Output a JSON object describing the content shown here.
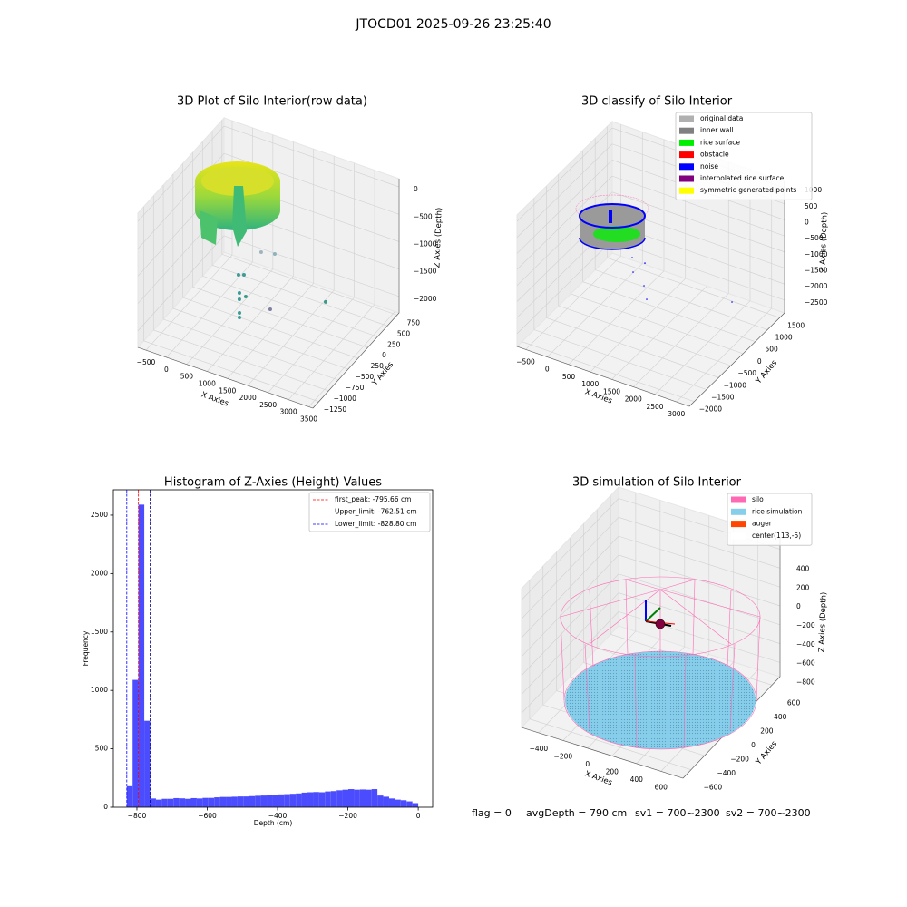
{
  "title": "JTOCD01 2025-09-26 23:25:40",
  "status": [
    "flag = 0",
    "avgDepth = 790 cm",
    "sv1 = 700~2300",
    "sv2 = 700~2300"
  ],
  "chart_data": [
    {
      "type": "scatter3d",
      "title": "3D Plot of Silo Interior(row data)",
      "xlabel": "X Axies",
      "ylabel": "Y Axies",
      "zlabel": "Z Axies (Depth)",
      "xlim": [
        -700,
        3600
      ],
      "ylim": [
        -1400,
        800
      ],
      "zlim": [
        -2300,
        150
      ],
      "xticks": [
        {
          "value": -500,
          "label": "−500"
        },
        0,
        500,
        1000,
        1500,
        2000,
        2500,
        3000,
        3500
      ],
      "yticks": [
        750,
        500,
        250,
        0,
        {
          "value": -250,
          "label": "−250"
        },
        {
          "value": -500,
          "label": "−500"
        },
        {
          "value": -750,
          "label": "−750"
        },
        {
          "value": -1000,
          "label": "−1000"
        },
        {
          "value": -1250,
          "label": "−1250"
        }
      ],
      "zticks": [
        0,
        {
          "value": -500,
          "label": "−500"
        },
        {
          "value": -1000,
          "label": "−1000"
        },
        {
          "value": -1500,
          "label": "−1500"
        },
        {
          "value": -2000,
          "label": "−2000"
        }
      ],
      "x": [
        982,
        1316,
        559,
        425,
        447,
        603,
        447,
        2565,
        1205,
        833,
        833
      ],
      "y": [
        0,
        0,
        0,
        0,
        0,
        0,
        0,
        0,
        0,
        -400,
        -400
      ],
      "z": [
        -1234,
        -1181,
        -1757,
        -1792,
        -2116,
        -2143,
        -2232,
        -1735,
        -2219,
        -2065,
        -2148
      ],
      "colors": [
        "#9fb4c0",
        "#8fb2bc",
        "#3b9c98",
        "#3b9c98",
        "#3b9c98",
        "#3a9a8a",
        "#3b9c98",
        "#3a9a8a",
        "#7f7f9f",
        "#3b9c98",
        "#3b9c98"
      ]
    },
    {
      "type": "scatter3d",
      "title": "3D classify of Silo Interior",
      "xlabel": "X Axies",
      "ylabel": "Y Axies",
      "zlabel": "Z Axies (Depth)",
      "xlim": [
        -700,
        3300
      ],
      "ylim": [
        -2200,
        1700
      ],
      "zlim": [
        -2900,
        1200
      ],
      "xticks": [
        {
          "value": -500,
          "label": "−500"
        },
        0,
        500,
        1000,
        1500,
        2000,
        2500,
        3000
      ],
      "yticks": [
        1500,
        1000,
        500,
        0,
        {
          "value": -500,
          "label": "−500"
        },
        {
          "value": -1000,
          "label": "−1000"
        },
        {
          "value": -1500,
          "label": "−1500"
        },
        {
          "value": -2000,
          "label": "−2000"
        }
      ],
      "zticks": [
        1000,
        500,
        0,
        {
          "value": -500,
          "label": "−500"
        },
        {
          "value": -1000,
          "label": "−1000"
        },
        {
          "value": -1500,
          "label": "−1500"
        },
        {
          "value": -2000,
          "label": "−2000"
        },
        {
          "value": -2500,
          "label": "−2500"
        }
      ],
      "series": [
        {
          "name": "original data",
          "color": "#b0b0b0"
        },
        {
          "name": "inner wall",
          "color": "#808080"
        },
        {
          "name": "rice surface",
          "color": "#00ee00"
        },
        {
          "name": "obstacle",
          "color": "#ff0000"
        },
        {
          "name": "noise",
          "color": "#0000ff",
          "x": [
            727,
            1022,
            748,
            1001,
            1064,
            3043
          ],
          "y": [
            0,
            0,
            0,
            0,
            0,
            0
          ],
          "z": [
            -1109,
            -1140,
            -1550,
            -1855,
            -2250,
            -1411
          ]
        },
        {
          "name": "interpolated rice surface",
          "color": "#800080"
        },
        {
          "name": "symmetric generated points",
          "color": "#ffff00"
        }
      ]
    },
    {
      "type": "histogram",
      "title": "Histogram of Z-Axies (Height) Values",
      "xlabel": "Depth (cm)",
      "ylabel": "Frequency",
      "color": "#4c4cff",
      "xlim": [
        -867,
        41
      ],
      "ylim": [
        0,
        2717
      ],
      "xticks": [
        {
          "value": -800,
          "label": "−800"
        },
        {
          "value": -600,
          "label": "−600"
        },
        {
          "value": -400,
          "label": "−400"
        },
        {
          "value": -200,
          "label": "−200"
        },
        0
      ],
      "yticks": [
        0,
        500,
        1000,
        1500,
        2000,
        2500
      ],
      "bins": [
        -828.8,
        -812.22,
        -795.65,
        -779.07,
        -762.5,
        -745.92,
        -729.34,
        -712.77,
        -696.19,
        -679.62,
        -663.04,
        -646.46,
        -629.89,
        -613.31,
        -596.74,
        -580.16,
        -563.58,
        -547.01,
        -530.43,
        -513.86,
        -497.28,
        -480.7,
        -464.13,
        -447.55,
        -430.98,
        -414.4,
        -397.82,
        -381.25,
        -364.67,
        -348.1,
        -331.52,
        -314.94,
        -298.37,
        -281.79,
        -265.22,
        -248.64,
        -232.06,
        -215.49,
        -198.91,
        -182.34,
        -165.76,
        -149.18,
        -132.61,
        -116.03,
        -99.46,
        -82.88,
        -66.3,
        -49.73,
        -33.15,
        -16.58,
        0
      ],
      "values": [
        180,
        1090,
        2590,
        740,
        75,
        65,
        72,
        72,
        78,
        76,
        72,
        78,
        75,
        80,
        80,
        85,
        88,
        88,
        90,
        92,
        92,
        95,
        98,
        100,
        102,
        105,
        110,
        112,
        115,
        118,
        125,
        128,
        130,
        128,
        135,
        138,
        145,
        150,
        155,
        150,
        152,
        150,
        155,
        100,
        90,
        75,
        65,
        60,
        50,
        35
      ],
      "vlines": [
        {
          "name": "first_peak: -795.66 cm",
          "value": -795.66,
          "color": "#ff0000"
        },
        {
          "name": "Upper_limit: -762.51 cm",
          "value": -762.51,
          "color": "#00008b"
        },
        {
          "name": "Lower_limit: -828.80 cm",
          "value": -828.8,
          "color": "#0000ff"
        }
      ]
    },
    {
      "type": "scatter3d",
      "title": "3D simulation of Silo Interior",
      "xlabel": "X Axies",
      "ylabel": "Y Axies",
      "zlabel": "Z Axies (Depth)",
      "xlim": [
        -540,
        780
      ],
      "ylim": [
        -720,
        720
      ],
      "zlim": [
        -950,
        520
      ],
      "xticks": [
        {
          "value": -400,
          "label": "−400"
        },
        {
          "value": -200,
          "label": "−200"
        },
        0,
        200,
        400,
        600
      ],
      "yticks": [
        600,
        400,
        200,
        0,
        {
          "value": -200,
          "label": "−200"
        },
        {
          "value": -400,
          "label": "−400"
        },
        {
          "value": -600,
          "label": "−600"
        }
      ],
      "zticks": [
        400,
        200,
        0,
        {
          "value": -200,
          "label": "−200"
        },
        {
          "value": -400,
          "label": "−400"
        },
        {
          "value": -600,
          "label": "−600"
        },
        {
          "value": -800,
          "label": "−800"
        }
      ],
      "series": [
        {
          "name": "silo",
          "color": "#ff69b4"
        },
        {
          "name": "rice simulation",
          "color": "#87ceeb"
        },
        {
          "name": "auger",
          "color": "#ff4500"
        },
        {
          "name": "center(113,-5)",
          "color": "#ffffff"
        }
      ]
    }
  ]
}
